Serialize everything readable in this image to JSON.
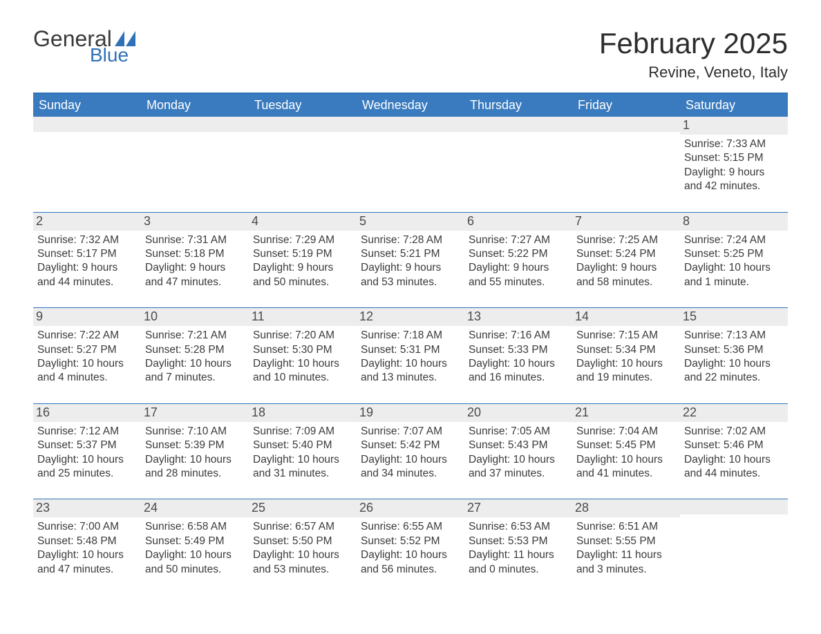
{
  "brand": {
    "top": "General",
    "bottom": "Blue",
    "accent": "#2f72b8"
  },
  "header": {
    "title": "February 2025",
    "location": "Revine, Veneto, Italy"
  },
  "styling": {
    "page_bg": "#ffffff",
    "header_bar_bg": "#3a7bbf",
    "header_bar_text": "#ffffff",
    "daynum_bg": "#ededed",
    "week_border": "#2f72b8",
    "body_text": "#3a3a3a",
    "title_fontsize": 42,
    "location_fontsize": 22,
    "dayname_fontsize": 18,
    "daynum_fontsize": 18,
    "cell_fontsize": 15.5
  },
  "dayNames": [
    "Sunday",
    "Monday",
    "Tuesday",
    "Wednesday",
    "Thursday",
    "Friday",
    "Saturday"
  ],
  "weeks": [
    [
      null,
      null,
      null,
      null,
      null,
      null,
      {
        "n": "1",
        "sunrise": "Sunrise: 7:33 AM",
        "sunset": "Sunset: 5:15 PM",
        "day1": "Daylight: 9 hours",
        "day2": "and 42 minutes."
      }
    ],
    [
      {
        "n": "2",
        "sunrise": "Sunrise: 7:32 AM",
        "sunset": "Sunset: 5:17 PM",
        "day1": "Daylight: 9 hours",
        "day2": "and 44 minutes."
      },
      {
        "n": "3",
        "sunrise": "Sunrise: 7:31 AM",
        "sunset": "Sunset: 5:18 PM",
        "day1": "Daylight: 9 hours",
        "day2": "and 47 minutes."
      },
      {
        "n": "4",
        "sunrise": "Sunrise: 7:29 AM",
        "sunset": "Sunset: 5:19 PM",
        "day1": "Daylight: 9 hours",
        "day2": "and 50 minutes."
      },
      {
        "n": "5",
        "sunrise": "Sunrise: 7:28 AM",
        "sunset": "Sunset: 5:21 PM",
        "day1": "Daylight: 9 hours",
        "day2": "and 53 minutes."
      },
      {
        "n": "6",
        "sunrise": "Sunrise: 7:27 AM",
        "sunset": "Sunset: 5:22 PM",
        "day1": "Daylight: 9 hours",
        "day2": "and 55 minutes."
      },
      {
        "n": "7",
        "sunrise": "Sunrise: 7:25 AM",
        "sunset": "Sunset: 5:24 PM",
        "day1": "Daylight: 9 hours",
        "day2": "and 58 minutes."
      },
      {
        "n": "8",
        "sunrise": "Sunrise: 7:24 AM",
        "sunset": "Sunset: 5:25 PM",
        "day1": "Daylight: 10 hours",
        "day2": "and 1 minute."
      }
    ],
    [
      {
        "n": "9",
        "sunrise": "Sunrise: 7:22 AM",
        "sunset": "Sunset: 5:27 PM",
        "day1": "Daylight: 10 hours",
        "day2": "and 4 minutes."
      },
      {
        "n": "10",
        "sunrise": "Sunrise: 7:21 AM",
        "sunset": "Sunset: 5:28 PM",
        "day1": "Daylight: 10 hours",
        "day2": "and 7 minutes."
      },
      {
        "n": "11",
        "sunrise": "Sunrise: 7:20 AM",
        "sunset": "Sunset: 5:30 PM",
        "day1": "Daylight: 10 hours",
        "day2": "and 10 minutes."
      },
      {
        "n": "12",
        "sunrise": "Sunrise: 7:18 AM",
        "sunset": "Sunset: 5:31 PM",
        "day1": "Daylight: 10 hours",
        "day2": "and 13 minutes."
      },
      {
        "n": "13",
        "sunrise": "Sunrise: 7:16 AM",
        "sunset": "Sunset: 5:33 PM",
        "day1": "Daylight: 10 hours",
        "day2": "and 16 minutes."
      },
      {
        "n": "14",
        "sunrise": "Sunrise: 7:15 AM",
        "sunset": "Sunset: 5:34 PM",
        "day1": "Daylight: 10 hours",
        "day2": "and 19 minutes."
      },
      {
        "n": "15",
        "sunrise": "Sunrise: 7:13 AM",
        "sunset": "Sunset: 5:36 PM",
        "day1": "Daylight: 10 hours",
        "day2": "and 22 minutes."
      }
    ],
    [
      {
        "n": "16",
        "sunrise": "Sunrise: 7:12 AM",
        "sunset": "Sunset: 5:37 PM",
        "day1": "Daylight: 10 hours",
        "day2": "and 25 minutes."
      },
      {
        "n": "17",
        "sunrise": "Sunrise: 7:10 AM",
        "sunset": "Sunset: 5:39 PM",
        "day1": "Daylight: 10 hours",
        "day2": "and 28 minutes."
      },
      {
        "n": "18",
        "sunrise": "Sunrise: 7:09 AM",
        "sunset": "Sunset: 5:40 PM",
        "day1": "Daylight: 10 hours",
        "day2": "and 31 minutes."
      },
      {
        "n": "19",
        "sunrise": "Sunrise: 7:07 AM",
        "sunset": "Sunset: 5:42 PM",
        "day1": "Daylight: 10 hours",
        "day2": "and 34 minutes."
      },
      {
        "n": "20",
        "sunrise": "Sunrise: 7:05 AM",
        "sunset": "Sunset: 5:43 PM",
        "day1": "Daylight: 10 hours",
        "day2": "and 37 minutes."
      },
      {
        "n": "21",
        "sunrise": "Sunrise: 7:04 AM",
        "sunset": "Sunset: 5:45 PM",
        "day1": "Daylight: 10 hours",
        "day2": "and 41 minutes."
      },
      {
        "n": "22",
        "sunrise": "Sunrise: 7:02 AM",
        "sunset": "Sunset: 5:46 PM",
        "day1": "Daylight: 10 hours",
        "day2": "and 44 minutes."
      }
    ],
    [
      {
        "n": "23",
        "sunrise": "Sunrise: 7:00 AM",
        "sunset": "Sunset: 5:48 PM",
        "day1": "Daylight: 10 hours",
        "day2": "and 47 minutes."
      },
      {
        "n": "24",
        "sunrise": "Sunrise: 6:58 AM",
        "sunset": "Sunset: 5:49 PM",
        "day1": "Daylight: 10 hours",
        "day2": "and 50 minutes."
      },
      {
        "n": "25",
        "sunrise": "Sunrise: 6:57 AM",
        "sunset": "Sunset: 5:50 PM",
        "day1": "Daylight: 10 hours",
        "day2": "and 53 minutes."
      },
      {
        "n": "26",
        "sunrise": "Sunrise: 6:55 AM",
        "sunset": "Sunset: 5:52 PM",
        "day1": "Daylight: 10 hours",
        "day2": "and 56 minutes."
      },
      {
        "n": "27",
        "sunrise": "Sunrise: 6:53 AM",
        "sunset": "Sunset: 5:53 PM",
        "day1": "Daylight: 11 hours",
        "day2": "and 0 minutes."
      },
      {
        "n": "28",
        "sunrise": "Sunrise: 6:51 AM",
        "sunset": "Sunset: 5:55 PM",
        "day1": "Daylight: 11 hours",
        "day2": "and 3 minutes."
      },
      null
    ]
  ]
}
